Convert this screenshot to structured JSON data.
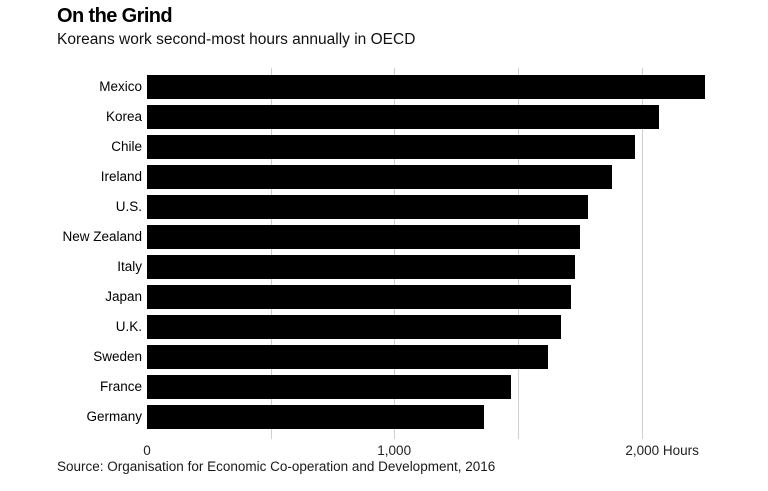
{
  "header": {
    "title": "On the Grind",
    "subtitle": "Koreans work second-most hours annually in OECD"
  },
  "chart_data": {
    "type": "bar",
    "orientation": "horizontal",
    "title": "On the Grind",
    "subtitle": "Koreans work second-most hours annually in OECD",
    "categories": [
      "Mexico",
      "Korea",
      "Chile",
      "Ireland",
      "U.S.",
      "New Zealand",
      "Italy",
      "Japan",
      "U.K.",
      "Sweden",
      "France",
      "Germany"
    ],
    "values": [
      2255,
      2069,
      1974,
      1879,
      1783,
      1752,
      1730,
      1713,
      1676,
      1621,
      1472,
      1363
    ],
    "unit": "Hours",
    "xlabel": "Hours",
    "ylabel": "",
    "xlim": [
      0,
      2350
    ],
    "x_ticks": [
      {
        "value": 0,
        "label": "0"
      },
      {
        "value": 1000,
        "label": "1,000"
      },
      {
        "value": 2000,
        "label": "2,000 Hours"
      }
    ],
    "gridline_values": [
      500,
      1000,
      1500,
      2000
    ],
    "grid": "vertical-only",
    "legend": false,
    "bar_color": "#000000",
    "gridline_color": "#cfcfcf"
  },
  "footer": {
    "source": "Source: Organisation for Economic Co-operation and Development, 2016"
  }
}
